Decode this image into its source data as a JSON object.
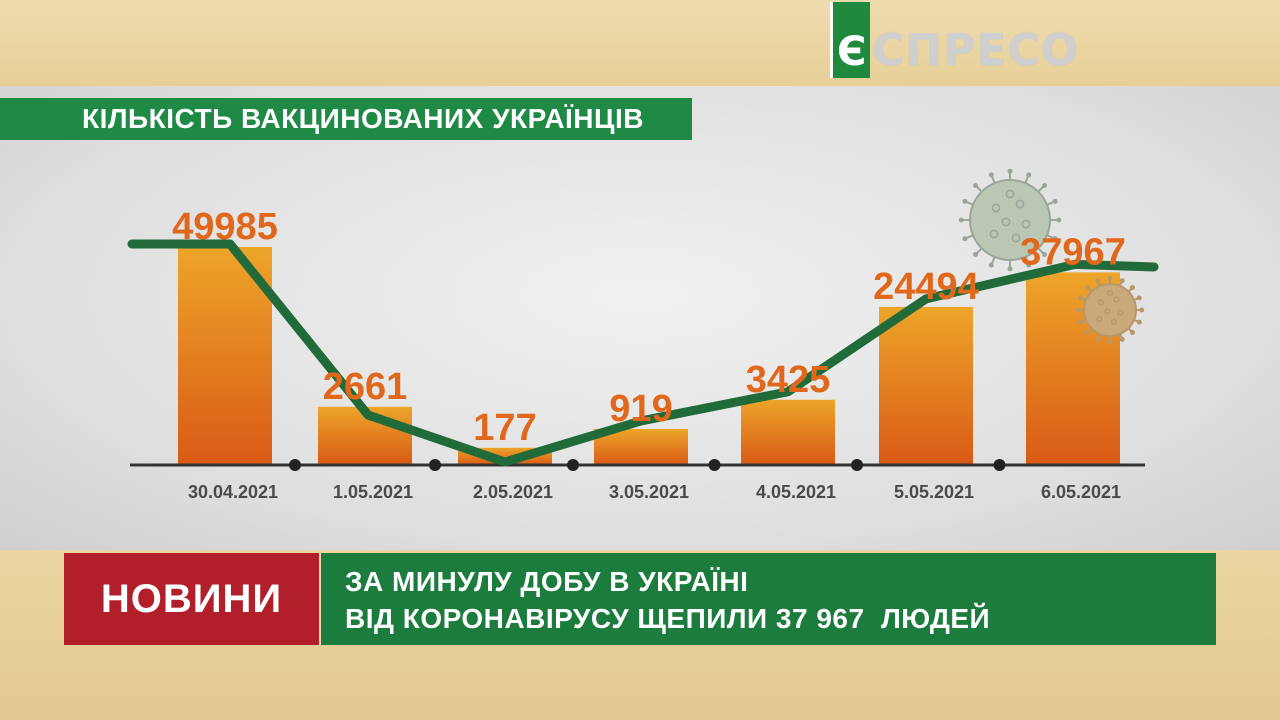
{
  "logo": {
    "mark": "Є",
    "text": "СПРЕСО"
  },
  "colors": {
    "bar": "#e46b18",
    "line": "#216b3a",
    "label": "#e0671c",
    "axis": "#333333",
    "tag_red": "#b11f2a",
    "ticker_green": "#1b7c3d"
  },
  "chart_data": {
    "type": "bar",
    "title": "КІЛЬКІСТЬ ВАКЦИНОВАНИХ УКРАЇНЦІВ",
    "categories": [
      "30.04.2021",
      "1.05.2021",
      "2.05.2021",
      "3.05.2021",
      "4.05.2021",
      "5.05.2021",
      "6.05.2021"
    ],
    "series": [
      {
        "values": [
          49985,
          2661,
          177,
          919,
          3425,
          24494,
          37967
        ]
      }
    ],
    "data_labels": [
      "49985",
      "2661",
      "177",
      "919",
      "3425",
      "24494",
      "37967"
    ],
    "trend_line": true,
    "grid": false
  },
  "ticker": {
    "tag": "НОВИНИ",
    "line1": "ЗА МИНУЛУ ДОБУ В УКРАЇНІ",
    "line2": "ВІД КОРОНАВІРУСУ ЩЕПИЛИ 37 967  ЛЮДЕЙ"
  },
  "decor": {
    "icons": [
      "virus-icon",
      "virus-icon"
    ]
  }
}
